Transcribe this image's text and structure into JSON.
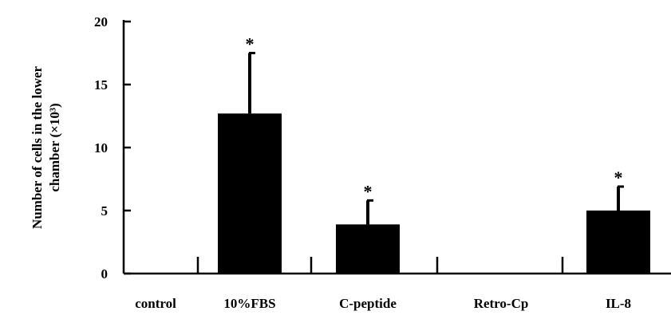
{
  "chart_data": {
    "type": "bar",
    "categories": [
      "control",
      "10%FBS",
      "C-peptide",
      "Retro-Cp",
      "IL-8"
    ],
    "values": [
      0,
      12.7,
      3.9,
      0,
      5.0
    ],
    "error_upper": [
      0,
      4.8,
      1.9,
      0,
      1.9
    ],
    "significance": [
      "",
      "*",
      "*",
      "",
      "*"
    ],
    "ylim": [
      0,
      20
    ],
    "yticks": [
      0,
      5,
      10,
      15,
      20
    ],
    "ylabel_lines": [
      "Number of cells in the lower",
      "chamber (×10³)"
    ],
    "xlabel": "",
    "title": "",
    "grid": false,
    "bar_color": "#000000"
  }
}
